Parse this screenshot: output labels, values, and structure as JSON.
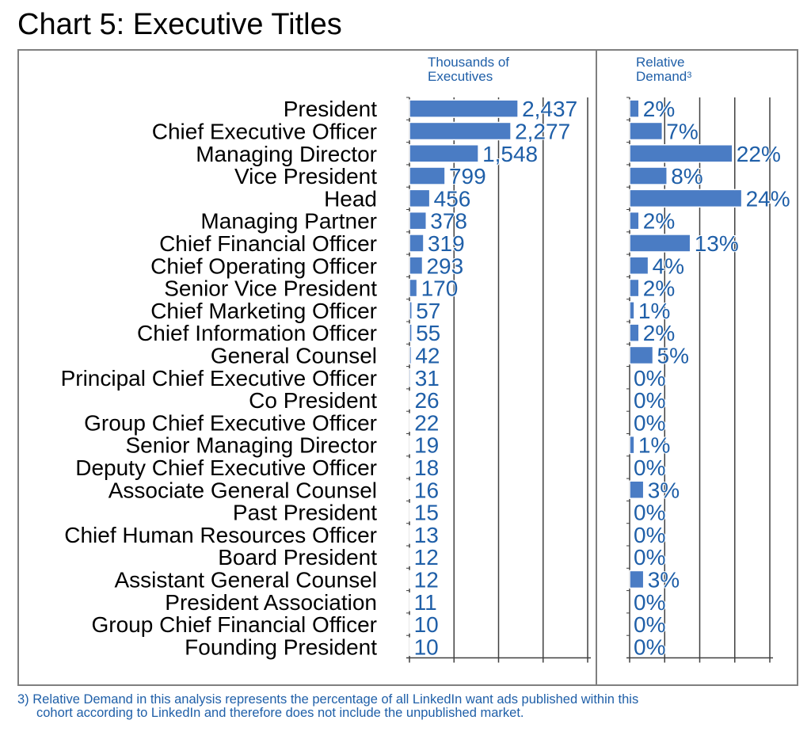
{
  "title": "Chart 5: Executive Titles",
  "headers": {
    "left_line1": "Thousands of",
    "left_line2": "Executives",
    "right_line1": "Relative",
    "right_line2": "Demand",
    "right_sup": "3"
  },
  "footnote": {
    "line1": "3) Relative Demand in this analysis represents the percentage of all LinkedIn want ads published within this",
    "line2": "cohort according to LinkedIn and therefore does not include the unpublished market."
  },
  "colors": {
    "bar": "#4a7cc4",
    "label": "#1f5fa8",
    "grid": "#404040",
    "frame": "#7f7f7f"
  },
  "chart_data": [
    {
      "type": "bar",
      "orientation": "horizontal",
      "categories": [
        "President",
        "Chief Executive Officer",
        "Managing Director",
        "Vice President",
        "Head",
        "Managing Partner",
        "Chief Financial Officer",
        "Chief Operating Officer",
        "Senior Vice President",
        "Chief Marketing Officer",
        "Chief Information Officer",
        "General Counsel",
        "Principal Chief Executive Officer",
        "Co President",
        "Group Chief Executive Officer",
        "Senior Managing Director",
        "Deputy Chief Executive Officer",
        "Associate General Counsel",
        "Past President",
        "Chief Human Resources Officer",
        "Board President",
        "Assistant General Counsel",
        "President Association",
        "Group Chief Financial Officer",
        "Founding President"
      ],
      "values": [
        2437,
        2277,
        1548,
        799,
        456,
        378,
        319,
        293,
        170,
        57,
        55,
        42,
        31,
        26,
        22,
        19,
        18,
        16,
        15,
        13,
        12,
        12,
        11,
        10,
        10
      ],
      "labels": [
        "2,437",
        "2,277",
        "1,548",
        "799",
        "456",
        "378",
        "319",
        "293",
        "170",
        "57",
        "55",
        "42",
        "31",
        "26",
        "22",
        "19",
        "18",
        "16",
        "15",
        "13",
        "12",
        "12",
        "11",
        "10",
        "10"
      ],
      "xlim": [
        0,
        4000
      ],
      "grid": true
    },
    {
      "type": "bar",
      "orientation": "horizontal",
      "categories": [
        "President",
        "Chief Executive Officer",
        "Managing Director",
        "Vice President",
        "Head",
        "Managing Partner",
        "Chief Financial Officer",
        "Chief Operating Officer",
        "Senior Vice President",
        "Chief Marketing Officer",
        "Chief Information Officer",
        "General Counsel",
        "Principal Chief Executive Officer",
        "Co President",
        "Group Chief Executive Officer",
        "Senior Managing Director",
        "Deputy Chief Executive Officer",
        "Associate General Counsel",
        "Past President",
        "Chief Human Resources Officer",
        "Board President",
        "Assistant General Counsel",
        "President Association",
        "Group Chief Financial Officer",
        "Founding President"
      ],
      "values": [
        2,
        7,
        22,
        8,
        24,
        2,
        13,
        4,
        2,
        1,
        2,
        5,
        0,
        0,
        0,
        1,
        0,
        3,
        0,
        0,
        0,
        3,
        0,
        0,
        0
      ],
      "labels": [
        "2%",
        "7%",
        "22%",
        "8%",
        "24%",
        "2%",
        "13%",
        "4%",
        "2%",
        "1%",
        "2%",
        "5%",
        "0%",
        "0%",
        "0%",
        "1%",
        "0%",
        "3%",
        "0%",
        "0%",
        "0%",
        "3%",
        "0%",
        "0%",
        "0%"
      ],
      "xlim": [
        0,
        30
      ],
      "grid": true
    }
  ]
}
